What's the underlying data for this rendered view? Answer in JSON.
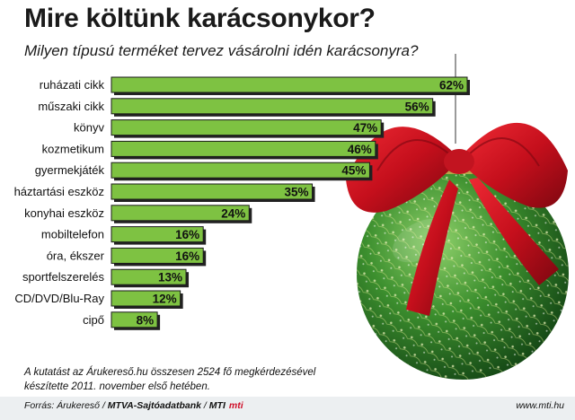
{
  "header": {
    "title": "Mire költünk karácsonykor?",
    "subtitle": "Milyen típusú terméket tervez vásárolni idén karácsonyra?"
  },
  "chart_data": {
    "type": "bar",
    "orientation": "horizontal",
    "categories": [
      "ruházati cikk",
      "műszaki cikk",
      "könyv",
      "kozmetikum",
      "gyermekjáték",
      "háztartási eszköz",
      "konyhai eszköz",
      "mobiltelefon",
      "óra, ékszer",
      "sportfelszerelés",
      "CD/DVD/Blu-Ray",
      "cipő"
    ],
    "values": [
      62,
      56,
      47,
      46,
      45,
      35,
      24,
      16,
      16,
      13,
      12,
      8
    ],
    "value_labels": [
      "62%",
      "56%",
      "47%",
      "46%",
      "45%",
      "35%",
      "24%",
      "16%",
      "16%",
      "13%",
      "12%",
      "8%"
    ],
    "unit": "%",
    "xlim": [
      0,
      62
    ],
    "grid": false,
    "legend": "none",
    "bar_color": "#7ec242",
    "bar_border_color": "#1b1b1b"
  },
  "note": "A kutatást az Árukereső.hu összesen 2524 fő megkérdezésével készítette 2011. november első hetében.",
  "footer": {
    "source_prefix": "Forrás: Árukereső / ",
    "source_bold": "MTVA-Sajtóadatbank",
    "source_sep": " / ",
    "source_end": "MTI",
    "logo": "mti",
    "website": "www.mti.hu"
  },
  "decoration": {
    "ornament": "green-christmas-bauble-with-red-bow-icon",
    "ornament_color": "#2f7d2a",
    "bow_color": "#c8101e"
  }
}
